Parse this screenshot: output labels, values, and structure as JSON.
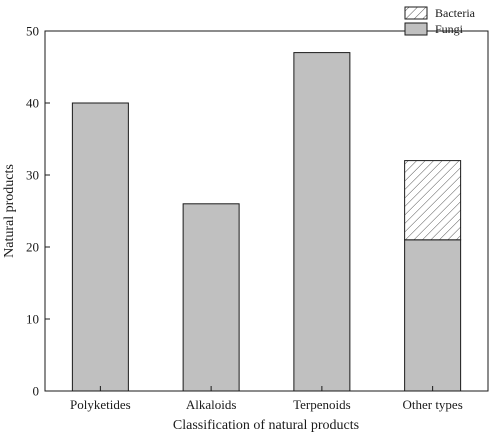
{
  "chart_data": {
    "type": "bar",
    "stacked": true,
    "categories": [
      "Polyketides",
      "Alkaloids",
      "Terpenoids",
      "Other types"
    ],
    "series": [
      {
        "name": "Fungi",
        "values": [
          40,
          26,
          47,
          21
        ],
        "color": "#c0c0c0",
        "pattern": "solid"
      },
      {
        "name": "Bacteria",
        "values": [
          0,
          0,
          0,
          11
        ],
        "color": "#ffffff",
        "pattern": "diagonal-hatch"
      }
    ],
    "legend_order": [
      "Bacteria",
      "Fungi"
    ],
    "legend_position": "top-right",
    "xlabel": "Classification of natural products",
    "ylabel": "Natural products",
    "ylim": [
      0,
      50
    ],
    "yticks": [
      "0",
      "10",
      "20",
      "30",
      "40",
      "50"
    ],
    "grid": false,
    "colors": {
      "axis": "#1a1a1a",
      "bar_edge": "#1a1a1a",
      "hatch": "#555555"
    }
  }
}
